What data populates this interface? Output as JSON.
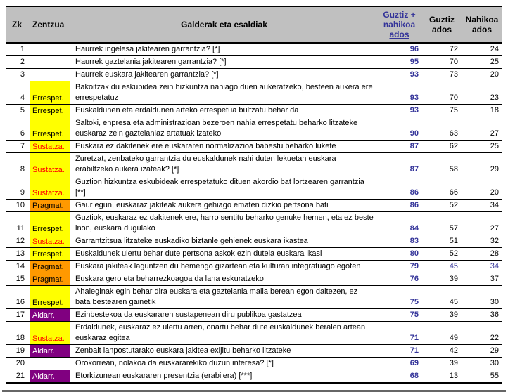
{
  "header": {
    "accent_main": "Guztiz + nahikoa",
    "accent_underline": "ados"
  },
  "chart_data": {
    "type": "table",
    "columns": [
      "Zk",
      "Zentzua",
      "Galderak eta esaldiak",
      "Guztiz + nahikoa ados",
      "Guztiz ados",
      "Nahikoa ados"
    ],
    "rows": [
      {
        "zk": "1",
        "category_key": null,
        "question": "Haurrek ingelesa jakitearen garrantzia? [*]",
        "guztiz_nahikoa": "96",
        "guztiz": "72",
        "nahikoa": "24",
        "secondary_blue": false
      },
      {
        "zk": "2",
        "category_key": null,
        "question": "Haurrek gaztelania jakitearen garrantzia? [*]",
        "guztiz_nahikoa": "95",
        "guztiz": "70",
        "nahikoa": "25",
        "secondary_blue": false
      },
      {
        "zk": "3",
        "category_key": null,
        "question": "Haurrek euskara jakitearen garrantzia? [*]",
        "guztiz_nahikoa": "93",
        "guztiz": "73",
        "nahikoa": "20",
        "secondary_blue": false
      },
      {
        "zk": "4",
        "category_key": "errespet",
        "question": "Bakoitzak du eskubidea zein hizkuntza nahiago duen aukeratzeko, besteen aukera ere errespetatuz",
        "guztiz_nahikoa": "93",
        "guztiz": "70",
        "nahikoa": "23",
        "secondary_blue": false
      },
      {
        "zk": "5",
        "category_key": "errespet",
        "question": "Euskaldunen eta erdaldunen arteko errespetua bultzatu behar da",
        "guztiz_nahikoa": "93",
        "guztiz": "75",
        "nahikoa": "18",
        "secondary_blue": false
      },
      {
        "zk": "6",
        "category_key": "errespet",
        "question": "Saltoki, enpresa eta administrazioan bezeroen nahia errespetatu beharko litzateke euskaraz zein gaztelaniaz artatuak izateko",
        "guztiz_nahikoa": "90",
        "guztiz": "63",
        "nahikoa": "27",
        "secondary_blue": false
      },
      {
        "zk": "7",
        "category_key": "sustatza",
        "question": "Euskara ez dakitenek ere euskararen normalizazioa babestu beharko lukete",
        "guztiz_nahikoa": "87",
        "guztiz": "62",
        "nahikoa": "25",
        "secondary_blue": false
      },
      {
        "zk": "8",
        "category_key": "sustatza",
        "question": "Zuretzat, zenbateko garrantzia du euskaldunek nahi duten lekuetan euskara erabiltzeko aukera izateak? [*]",
        "guztiz_nahikoa": "87",
        "guztiz": "58",
        "nahikoa": "29",
        "secondary_blue": false
      },
      {
        "zk": "9",
        "category_key": "sustatza",
        "question": "Guztion hizkuntza eskubideak errespetatuko dituen akordio bat lortzearen garrantzia [**]",
        "guztiz_nahikoa": "86",
        "guztiz": "66",
        "nahikoa": "20",
        "secondary_blue": false
      },
      {
        "zk": "10",
        "category_key": "pragmat",
        "question": "Gaur egun, euskaraz jakiteak aukera gehiago ematen dizkio pertsona bati",
        "guztiz_nahikoa": "86",
        "guztiz": "52",
        "nahikoa": "34",
        "secondary_blue": false
      },
      {
        "zk": "11",
        "category_key": "errespet",
        "question": "Guztiok, euskaraz ez dakitenek ere, harro sentitu beharko genuke hemen, eta ez beste inon, euskara dugulako",
        "guztiz_nahikoa": "84",
        "guztiz": "57",
        "nahikoa": "27",
        "secondary_blue": false
      },
      {
        "zk": "12",
        "category_key": "sustatza",
        "question": "Garrantzitsua litzateke euskadiko biztanle gehienek euskara ikastea",
        "guztiz_nahikoa": "83",
        "guztiz": "51",
        "nahikoa": "32",
        "secondary_blue": false
      },
      {
        "zk": "13",
        "category_key": "errespet",
        "question": "Euskaldunek ulertu behar dute pertsona askok ezin dutela euskara ikasi",
        "guztiz_nahikoa": "80",
        "guztiz": "52",
        "nahikoa": "28",
        "secondary_blue": false
      },
      {
        "zk": "14",
        "category_key": "pragmat",
        "question": "Euskara jakiteak laguntzen du hemengo gizartean eta kulturan integratuago egoten",
        "guztiz_nahikoa": "79",
        "guztiz": "45",
        "nahikoa": "34",
        "secondary_blue": true
      },
      {
        "zk": "15",
        "category_key": "pragmat",
        "question": "Euskara gero eta beharrezkoagoa da lana eskuratzeko",
        "guztiz_nahikoa": "76",
        "guztiz": "39",
        "nahikoa": "37",
        "secondary_blue": false
      },
      {
        "zk": "16",
        "category_key": "errespet",
        "question": "Ahaleginak egin behar dira euskara eta gaztelania maila berean egon daitezen, ez bata bestearen gainetik",
        "guztiz_nahikoa": "75",
        "guztiz": "45",
        "nahikoa": "30",
        "secondary_blue": false
      },
      {
        "zk": "17",
        "category_key": "aldarr",
        "question": "Ezinbestekoa da euskararen sustapenean diru publikoa gastatzea",
        "guztiz_nahikoa": "75",
        "guztiz": "39",
        "nahikoa": "36",
        "secondary_blue": false
      },
      {
        "zk": "18",
        "category_key": "sustatza",
        "question": "Erdaldunek, euskaraz ez ulertu arren, onartu behar dute euskaldunek beraien artean euskaraz egitea",
        "guztiz_nahikoa": "71",
        "guztiz": "49",
        "nahikoa": "22",
        "secondary_blue": false
      },
      {
        "zk": "19",
        "category_key": "aldarr",
        "question": "Zenbait lanpostutarako euskara jakitea exijitu beharko litzateke",
        "guztiz_nahikoa": "71",
        "guztiz": "42",
        "nahikoa": "29",
        "secondary_blue": false
      },
      {
        "zk": "20",
        "category_key": null,
        "question": "Orokorrean, nolakoa da euskararekiko duzun interesa? [*]",
        "guztiz_nahikoa": "69",
        "guztiz": "39",
        "nahikoa": "30",
        "secondary_blue": false
      },
      {
        "zk": "21",
        "category_key": "aldarr",
        "question": "Etorkizunean euskararen presentzia (erabilera) [***]",
        "guztiz_nahikoa": "68",
        "guztiz": "13",
        "nahikoa": "55",
        "secondary_blue": false
      }
    ]
  },
  "categories": {
    "errespet": {
      "label": "Errespet.",
      "bg": "#ffff00",
      "text": "#000000"
    },
    "sustatza": {
      "label": "Sustatza.",
      "bg": "#ffff00",
      "text": "#ff0000"
    },
    "pragmat": {
      "label": "Pragmat.",
      "bg": "#ff9900",
      "text": "#000000"
    },
    "aldarr": {
      "label": "Aldarr.",
      "bg": "#800080",
      "text": "#ffffff"
    }
  },
  "colors": {
    "accent_blue": "#333399",
    "header_bg": "#c0c0c0",
    "row_border": "#000000",
    "footer_rule": "#666666"
  }
}
